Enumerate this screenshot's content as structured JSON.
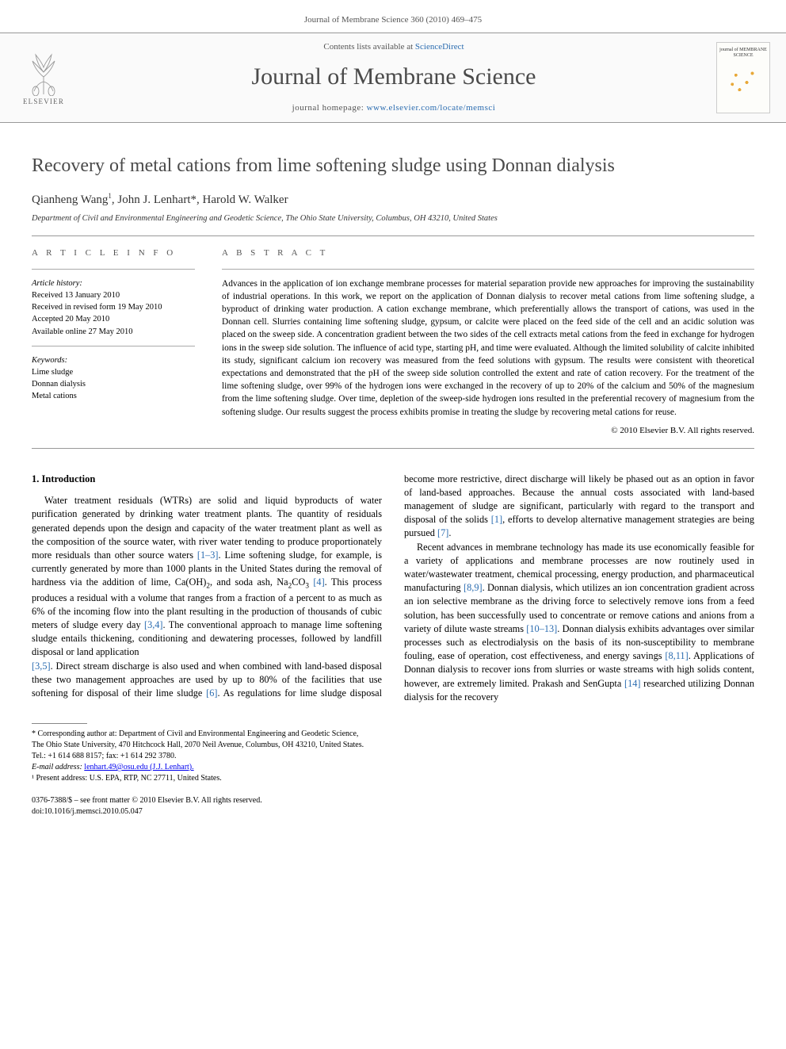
{
  "running_header": "Journal of Membrane Science 360 (2010) 469–475",
  "masthead": {
    "contents_prefix": "Contents lists available at ",
    "contents_link": "ScienceDirect",
    "journal_title": "Journal of Membrane Science",
    "homepage_prefix": "journal homepage: ",
    "homepage_url": "www.elsevier.com/locate/memsci",
    "publisher": "ELSEVIER",
    "cover_title": "journal of MEMBRANE SCIENCE"
  },
  "article": {
    "title": "Recovery of metal cations from lime softening sludge using Donnan dialysis",
    "authors_html": "Qianheng Wang<sup>1</sup>, John J. Lenhart*, Harold W. Walker",
    "affiliation": "Department of Civil and Environmental Engineering and Geodetic Science, The Ohio State University, Columbus, OH 43210, United States"
  },
  "info": {
    "heading": "A R T I C L E   I N F O",
    "history_label": "Article history:",
    "received": "Received 13 January 2010",
    "revised": "Received in revised form 19 May 2010",
    "accepted": "Accepted 20 May 2010",
    "online": "Available online 27 May 2010",
    "keywords_label": "Keywords:",
    "kw1": "Lime sludge",
    "kw2": "Donnan dialysis",
    "kw3": "Metal cations"
  },
  "abstract": {
    "heading": "A B S T R A C T",
    "text": "Advances in the application of ion exchange membrane processes for material separation provide new approaches for improving the sustainability of industrial operations. In this work, we report on the application of Donnan dialysis to recover metal cations from lime softening sludge, a byproduct of drinking water production. A cation exchange membrane, which preferentially allows the transport of cations, was used in the Donnan cell. Slurries containing lime softening sludge, gypsum, or calcite were placed on the feed side of the cell and an acidic solution was placed on the sweep side. A concentration gradient between the two sides of the cell extracts metal cations from the feed in exchange for hydrogen ions in the sweep side solution. The influence of acid type, starting pH, and time were evaluated. Although the limited solubility of calcite inhibited its study, significant calcium ion recovery was measured from the feed solutions with gypsum. The results were consistent with theoretical expectations and demonstrated that the pH of the sweep side solution controlled the extent and rate of cation recovery. For the treatment of the lime softening sludge, over 99% of the hydrogen ions were exchanged in the recovery of up to 20% of the calcium and 50% of the magnesium from the lime softening sludge. Over time, depletion of the sweep-side hydrogen ions resulted in the preferential recovery of magnesium from the softening sludge. Our results suggest the process exhibits promise in treating the sludge by recovering metal cations for reuse.",
    "copyright": "© 2010 Elsevier B.V. All rights reserved."
  },
  "body": {
    "section_number": "1.",
    "section_title": "Introduction",
    "p1_html": "Water treatment residuals (WTRs) are solid and liquid byproducts of water purification generated by drinking water treatment plants. The quantity of residuals generated depends upon the design and capacity of the water treatment plant as well as the composition of the source water, with river water tending to produce proportionately more residuals than other source waters <span class=\"ref\">[1–3]</span>. Lime softening sludge, for example, is currently generated by more than 1000 plants in the United States during the removal of hardness via the addition of lime, Ca(OH)<sub>2</sub>, and soda ash, Na<sub>2</sub>CO<sub>3</sub> <span class=\"ref\">[4]</span>. This process produces a residual with a volume that ranges from a fraction of a percent to as much as 6% of the incoming flow into the plant resulting in the production of thousands of cubic meters of sludge every day <span class=\"ref\">[3,4]</span>. The conventional approach to manage lime softening sludge entails thickening, conditioning and dewatering processes, followed by landfill disposal or land application",
    "p2_html": "<span class=\"ref\">[3,5]</span>. Direct stream discharge is also used and when combined with land-based disposal these two management approaches are used by up to 80% of the facilities that use softening for disposal of their lime sludge <span class=\"ref\">[6]</span>. As regulations for lime sludge disposal become more restrictive, direct discharge will likely be phased out as an option in favor of land-based approaches. Because the annual costs associated with land-based management of sludge are significant, particularly with regard to the transport and disposal of the solids <span class=\"ref\">[1]</span>, efforts to develop alternative management strategies are being pursued <span class=\"ref\">[7]</span>.",
    "p3_html": "Recent advances in membrane technology has made its use economically feasible for a variety of applications and membrane processes are now routinely used in water/wastewater treatment, chemical processing, energy production, and pharmaceutical manufacturing <span class=\"ref\">[8,9]</span>. Donnan dialysis, which utilizes an ion concentration gradient across an ion selective membrane as the driving force to selectively remove ions from a feed solution, has been successfully used to concentrate or remove cations and anions from a variety of dilute waste streams <span class=\"ref\">[10–13]</span>. Donnan dialysis exhibits advantages over similar processes such as electrodialysis on the basis of its non-susceptibility to membrane fouling, ease of operation, cost effectiveness, and energy savings <span class=\"ref\">[8,11]</span>. Applications of Donnan dialysis to recover ions from slurries or waste streams with high solids content, however, are extremely limited. Prakash and SenGupta <span class=\"ref\">[14]</span> researched utilizing Donnan dialysis for the recovery"
  },
  "footnotes": {
    "corr": "* Corresponding author at: Department of Civil and Environmental Engineering and Geodetic Science, The Ohio State University, 470 Hitchcock Hall, 2070 Neil Avenue, Columbus, OH 43210, United States. Tel.: +1 614 688 8157; fax: +1 614 292 3780.",
    "email_label": "E-mail address:",
    "email": "lenhart.49@osu.edu (J.J. Lenhart).",
    "present": "¹ Present address: U.S. EPA, RTP, NC 27711, United States."
  },
  "footer": {
    "line1": "0376-7388/$ – see front matter © 2010 Elsevier B.V. All rights reserved.",
    "line2": "doi:10.1016/j.memsci.2010.05.047"
  },
  "colors": {
    "text": "#000000",
    "muted": "#555555",
    "link": "#2b6cb0",
    "rule": "#999999",
    "elsevier": "#e67817"
  }
}
